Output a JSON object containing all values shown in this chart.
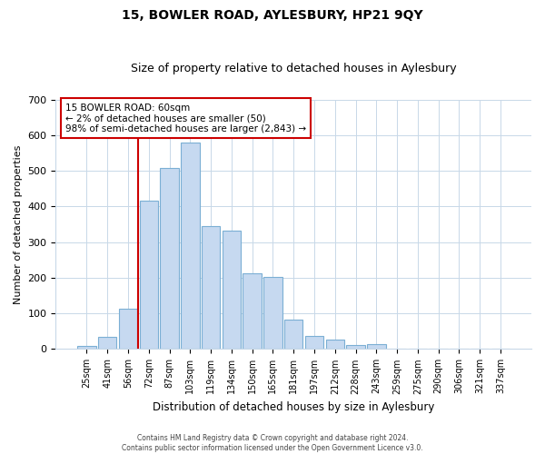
{
  "title": "15, BOWLER ROAD, AYLESBURY, HP21 9QY",
  "subtitle": "Size of property relative to detached houses in Aylesbury",
  "xlabel": "Distribution of detached houses by size in Aylesbury",
  "ylabel": "Number of detached properties",
  "bar_labels": [
    "25sqm",
    "41sqm",
    "56sqm",
    "72sqm",
    "87sqm",
    "103sqm",
    "119sqm",
    "134sqm",
    "150sqm",
    "165sqm",
    "181sqm",
    "197sqm",
    "212sqm",
    "228sqm",
    "243sqm",
    "259sqm",
    "275sqm",
    "290sqm",
    "306sqm",
    "321sqm",
    "337sqm"
  ],
  "bar_values": [
    8,
    35,
    113,
    415,
    508,
    578,
    345,
    333,
    213,
    202,
    83,
    38,
    27,
    12,
    13,
    0,
    2,
    0,
    0,
    0,
    2
  ],
  "bar_color": "#c6d9f0",
  "bar_edge_color": "#7bafd4",
  "vline_color": "#cc0000",
  "ylim": [
    0,
    700
  ],
  "yticks": [
    0,
    100,
    200,
    300,
    400,
    500,
    600,
    700
  ],
  "annotation_title": "15 BOWLER ROAD: 60sqm",
  "annotation_line1": "← 2% of detached houses are smaller (50)",
  "annotation_line2": "98% of semi-detached houses are larger (2,843) →",
  "footer_line1": "Contains HM Land Registry data © Crown copyright and database right 2024.",
  "footer_line2": "Contains public sector information licensed under the Open Government Licence v3.0.",
  "background_color": "#ffffff",
  "grid_color": "#c8d8e8"
}
